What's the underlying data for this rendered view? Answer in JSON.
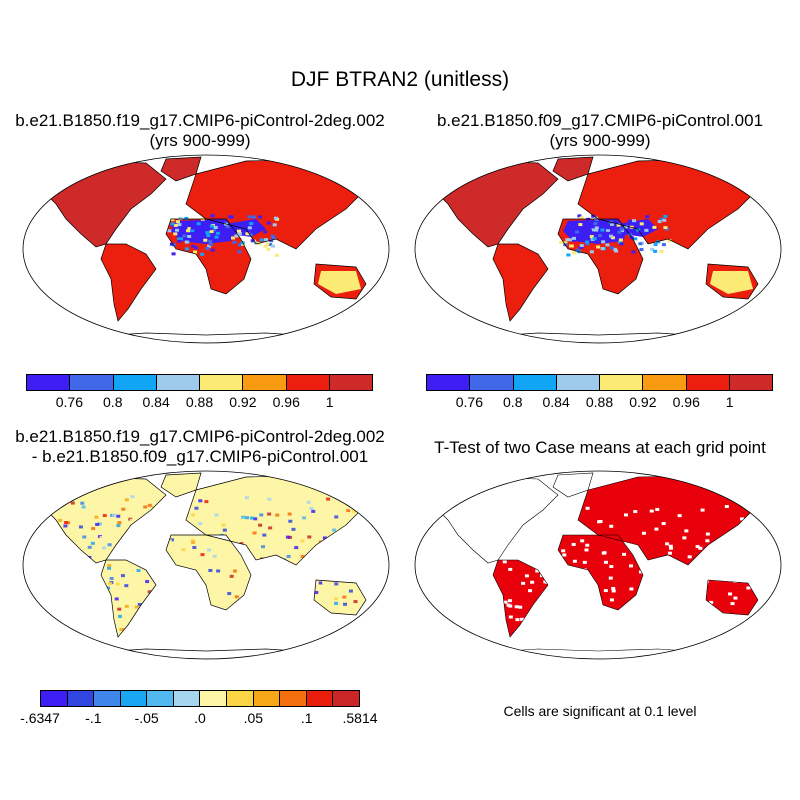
{
  "title": "DJF BTRAN2 (unitless)",
  "panels": [
    {
      "id": "case1",
      "title_line1": "b.e21.B1850.f19_g17.CMIP6-piControl-2deg.002",
      "title_line2": "(yrs 900-999)"
    },
    {
      "id": "case2",
      "title_line1": "b.e21.B1850.f09_g17.CMIP6-piControl.001",
      "title_line2": "(yrs 900-999)"
    },
    {
      "id": "difference",
      "title_line1": "b.e21.B1850.f19_g17.CMIP6-piControl-2deg.002",
      "title_line2": "- b.e21.B1850.f09_g17.CMIP6-piControl.001"
    },
    {
      "id": "ttest",
      "title_line1": "T-Test of two Case means at each grid point",
      "note": "Cells are significant at 0.1 level",
      "significance_color": "#e8000b"
    }
  ],
  "colorbar_abs": {
    "colors": [
      "#3d1ff5",
      "#4168e8",
      "#10a6f5",
      "#9ecbec",
      "#fbea74",
      "#f89b12",
      "#ec1e0e",
      "#cf2a2a"
    ],
    "labels": [
      "0.76",
      "0.8",
      "0.84",
      "0.88",
      "0.92",
      "0.96",
      "1"
    ]
  },
  "colorbar_diff": {
    "colors": [
      "#3d1ff5",
      "#3146e0",
      "#3e86ea",
      "#1ba6f2",
      "#52b8f0",
      "#a6d5f0",
      "#fcf6a6",
      "#fbd545",
      "#f6a718",
      "#f46f0d",
      "#ea1e0d",
      "#c92727"
    ],
    "labels": [
      "-.6347",
      "-.1",
      "-.05",
      ".0",
      ".05",
      ".1",
      ".5814"
    ]
  },
  "map_colors": {
    "land_wet": "#ec1e0e",
    "land_dry": "#3d1ff5",
    "land_mid": "#fbea74",
    "diff_base": "#fcf6a6",
    "outline": "#000000",
    "coast": "#000000"
  }
}
